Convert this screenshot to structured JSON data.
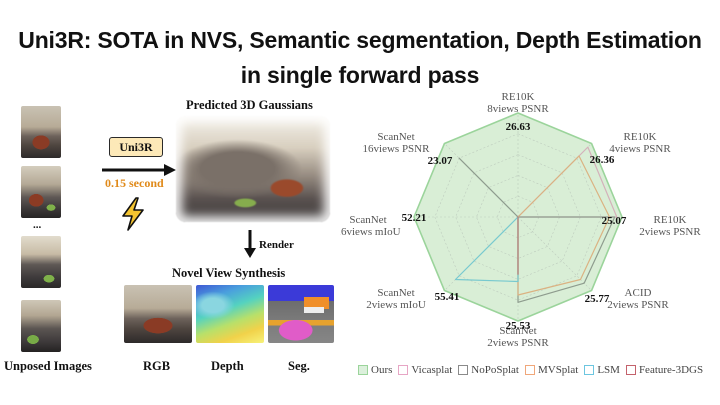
{
  "title": {
    "line1": "Uni3R: SOTA in NVS, Semantic segmentation, Depth Estimation",
    "line2": "in single forward pass"
  },
  "pipeline": {
    "input_caption": "Unposed Images",
    "ellipsis": "...",
    "model_name": "Uni3R",
    "inference_time": "0.15 second",
    "gaussians_caption": "Predicted 3D Gaussians",
    "render_label": "Render",
    "nvs_caption": "Novel View Synthesis",
    "outputs": [
      "RGB",
      "Depth",
      "Seg."
    ],
    "lightning_icon": "lightning-icon",
    "colors": {
      "model_box": "#fde9b8",
      "time_text": "#e08a1a",
      "lightning": "#f4c430"
    }
  },
  "chart_data": {
    "type": "radar",
    "axes": [
      {
        "name": "RE10K\n8views PSNR",
        "ours": "26.63"
      },
      {
        "name": "RE10K\n4views PSNR",
        "ours": "26.36"
      },
      {
        "name": "RE10K\n2views PSNR",
        "ours": "25.07"
      },
      {
        "name": "ACID\n2views PSNR",
        "ours": "25.77"
      },
      {
        "name": "ScanNet\n2views PSNR",
        "ours": "25.53"
      },
      {
        "name": "ScanNet\n2views mIoU",
        "ours": "55.41"
      },
      {
        "name": "ScanNet\n16views mIoU",
        "ours": "52.21"
      },
      {
        "name": "ScanNet\n16views PSNR",
        "ours": "23.07"
      }
    ],
    "series": [
      {
        "name": "Ours",
        "color": "#9bd49b",
        "values": [
          1.0,
          1.0,
          1.0,
          1.0,
          1.0,
          1.0,
          1.0,
          1.0
        ]
      },
      {
        "name": "Vicasplat",
        "color": "#e7a6c5",
        "values": [
          0.0,
          0.95,
          0.95,
          0.0,
          0.0,
          0.0,
          0.0,
          0.0
        ]
      },
      {
        "name": "NoPoSplat",
        "color": "#8a8a8a",
        "values": [
          0.0,
          0.0,
          0.93,
          0.9,
          0.82,
          0.0,
          0.0,
          0.8
        ]
      },
      {
        "name": "MVSplat",
        "color": "#f0a77a",
        "values": [
          0.0,
          0.83,
          0.88,
          0.85,
          0.75,
          0.0,
          0.0,
          0.0
        ]
      },
      {
        "name": "LSM",
        "color": "#6cc6e0",
        "values": [
          0.0,
          0.0,
          0.0,
          0.0,
          0.62,
          0.85,
          0.0,
          0.0
        ]
      },
      {
        "name": "Feature-3DGS",
        "color": "#c4626c",
        "values": [
          0.0,
          0.0,
          0.0,
          0.0,
          0.55,
          0.0,
          0.0,
          0.0
        ]
      }
    ]
  }
}
